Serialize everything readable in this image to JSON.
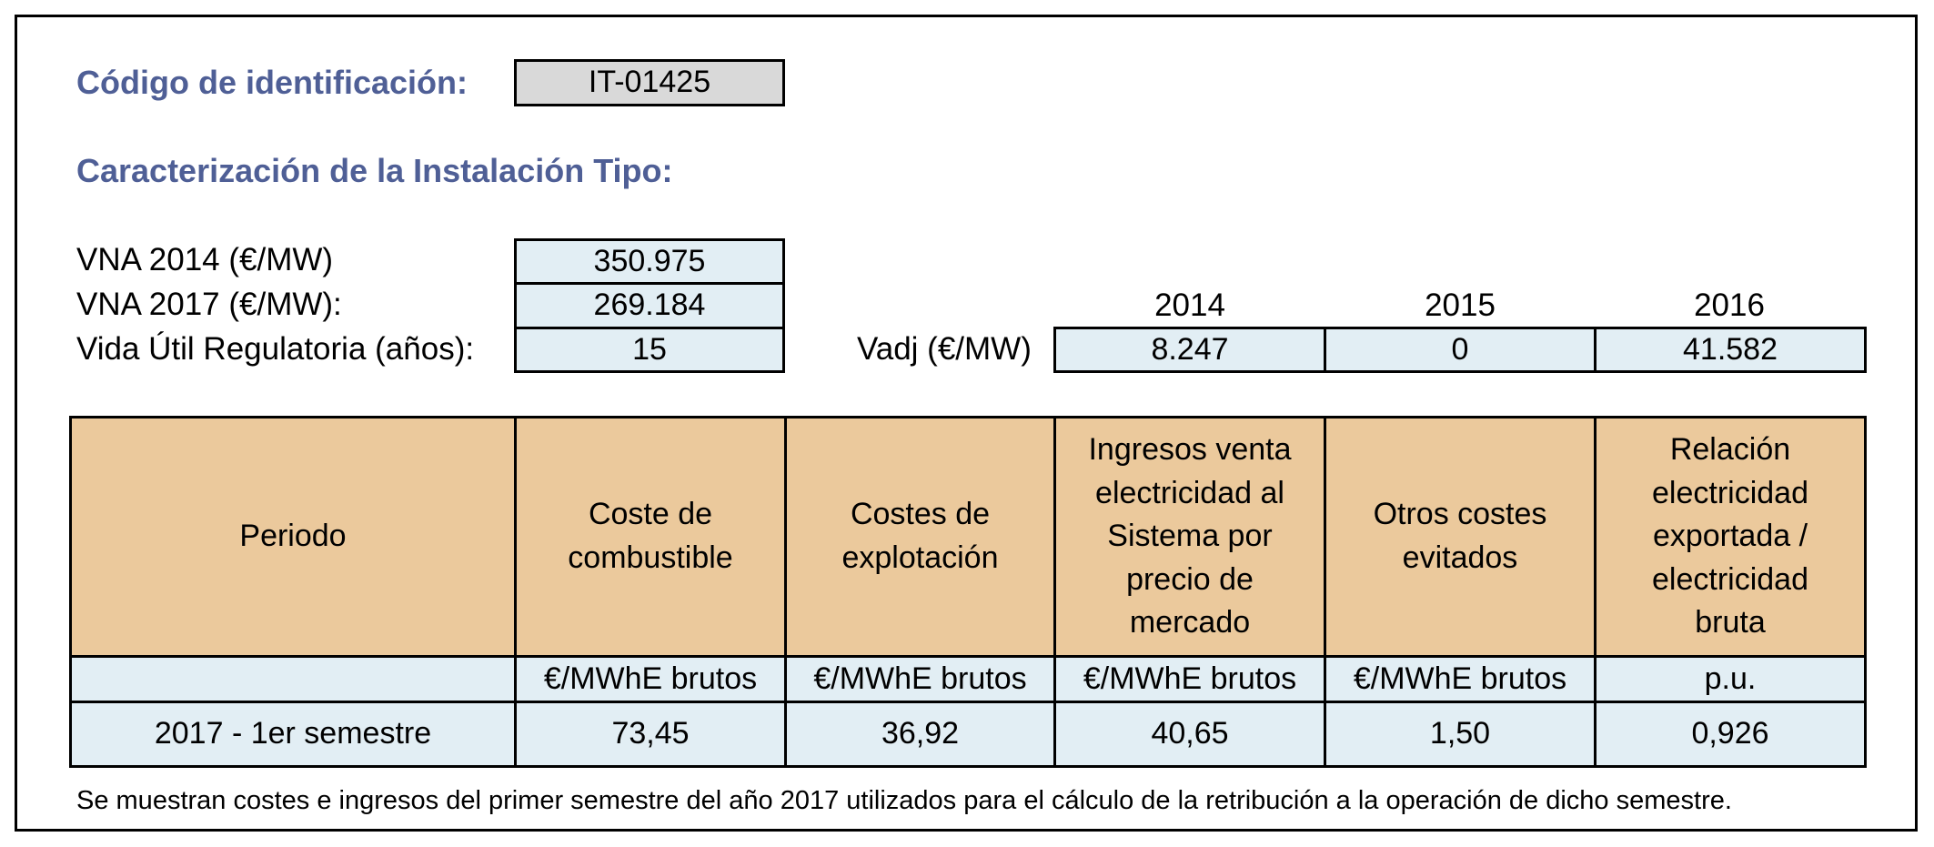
{
  "codigo": {
    "label": "Código de identificación:",
    "value": "IT-01425"
  },
  "caracterizacion_title": "Caracterización de la Instalación Tipo:",
  "params": [
    {
      "label": "VNA 2014 (€/MW)",
      "value": "350.975"
    },
    {
      "label": "VNA 2017 (€/MW):",
      "value": "269.184"
    },
    {
      "label": "Vida Útil Regulatoria (años):",
      "value": "15"
    }
  ],
  "vadj": {
    "label": "Vadj (€/MW)",
    "years": [
      "2014",
      "2015",
      "2016"
    ],
    "values": [
      "8.247",
      "0",
      "41.582"
    ]
  },
  "table": {
    "headers": [
      "Periodo",
      "Coste de combustible",
      "Costes de explotación",
      "Ingresos venta electricidad al Sistema por precio de mercado",
      "Otros costes evitados",
      "Relación electricidad exportada / electricidad bruta"
    ],
    "units": [
      "",
      "€/MWhE brutos",
      "€/MWhE brutos",
      "€/MWhE brutos",
      "€/MWhE brutos",
      "p.u."
    ],
    "row": [
      "2017 - 1er semestre",
      "73,45",
      "36,92",
      "40,65",
      "1,50",
      "0,926"
    ]
  },
  "footnote": "Se muestran costes e ingresos del primer semestre del año 2017 utilizados para el cálculo de la retribución a la operación de dicho semestre."
}
